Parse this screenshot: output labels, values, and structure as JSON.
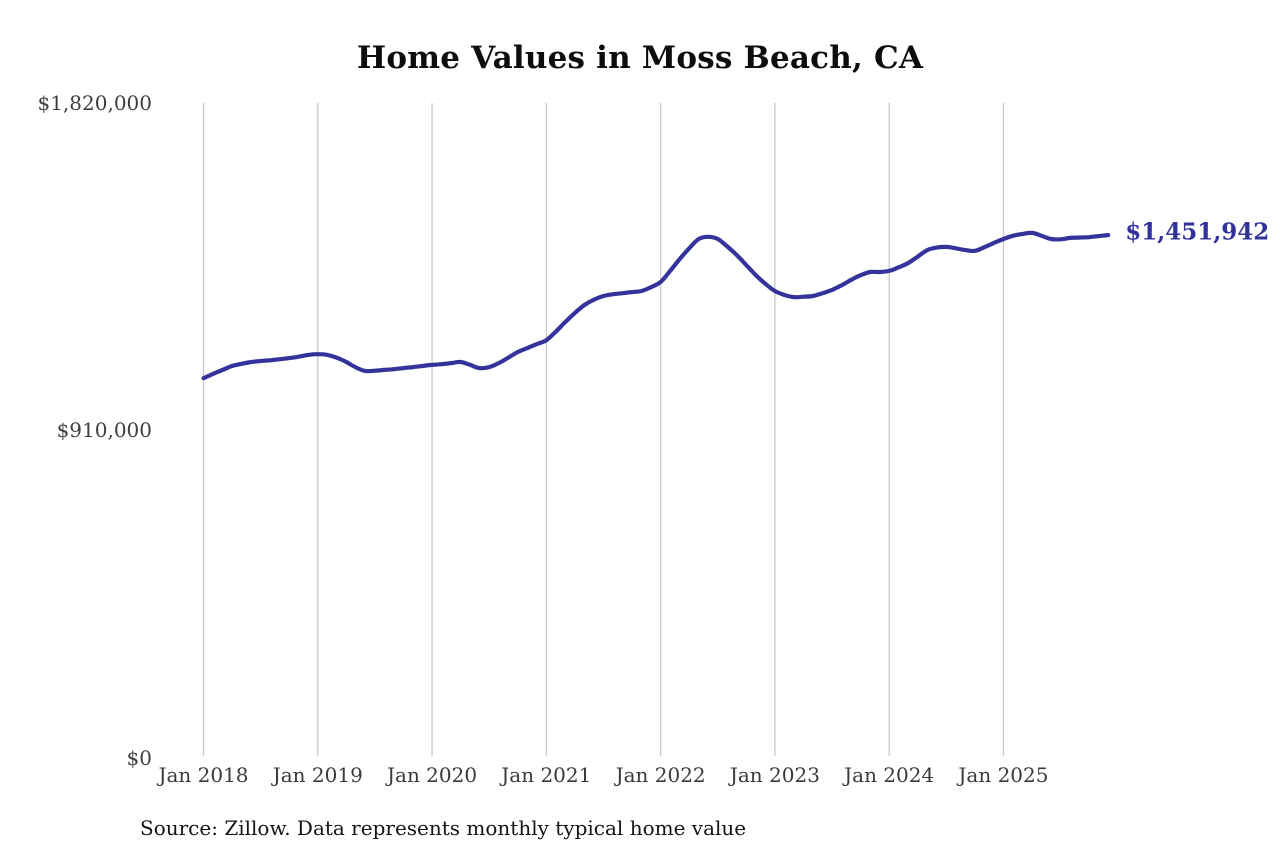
{
  "title": "Home Values in Moss Beach, CA",
  "source_note": "Source: Zillow. Data represents monthly typical home value",
  "colors": {
    "line": "#33339B",
    "end_label": "#32329B",
    "gridline": "#C9C9C9",
    "axis_text": "#3A3A3A",
    "title_text": "#0D0D0D"
  },
  "chart_data": {
    "type": "line",
    "title": "Home Values in Moss Beach, CA",
    "xlabel": "",
    "ylabel": "",
    "ylim": [
      0,
      1820000
    ],
    "grid": "vertical-year-gridlines-only",
    "legend_position": "none",
    "frequency": "monthly",
    "x_start": "2018-01",
    "x_end": "2025-12",
    "x_tick_labels": [
      "Jan 2018",
      "Jan 2019",
      "Jan 2020",
      "Jan 2021",
      "Jan 2022",
      "Jan 2023",
      "Jan 2024",
      "Jan 2025"
    ],
    "y_ticks": [
      {
        "label": "$0",
        "value": 0
      },
      {
        "label": "$910,000",
        "value": 910000
      },
      {
        "label": "$1,820,000",
        "value": 1820000
      }
    ],
    "final_value": 1451942,
    "final_value_label": "$1,451,942",
    "series": [
      {
        "name": "Typical home value (USD)",
        "values": [
          1053000,
          1065000,
          1076000,
          1087000,
          1093000,
          1098000,
          1101000,
          1103000,
          1106000,
          1109000,
          1113000,
          1118000,
          1120000,
          1118000,
          1110000,
          1098000,
          1083000,
          1073000,
          1074000,
          1076000,
          1078000,
          1081000,
          1084000,
          1087000,
          1090000,
          1092000,
          1095000,
          1098000,
          1090000,
          1081000,
          1084000,
          1095000,
          1110000,
          1126000,
          1137000,
          1148000,
          1159000,
          1183000,
          1210000,
          1235000,
          1257000,
          1272000,
          1282000,
          1287000,
          1290000,
          1293000,
          1296000,
          1307000,
          1321000,
          1352000,
          1385000,
          1415000,
          1441000,
          1447000,
          1441000,
          1420000,
          1396000,
          1368000,
          1340000,
          1316000,
          1296000,
          1285000,
          1279000,
          1280000,
          1282000,
          1290000,
          1299000,
          1312000,
          1327000,
          1340000,
          1349000,
          1349000,
          1352000,
          1362000,
          1374000,
          1392000,
          1410000,
          1417000,
          1419000,
          1415000,
          1410000,
          1408000,
          1418000,
          1430000,
          1441000,
          1450000,
          1455000,
          1458000,
          1450000,
          1441000,
          1440000,
          1444000,
          1445000,
          1446000,
          1449000,
          1451942
        ]
      }
    ]
  }
}
